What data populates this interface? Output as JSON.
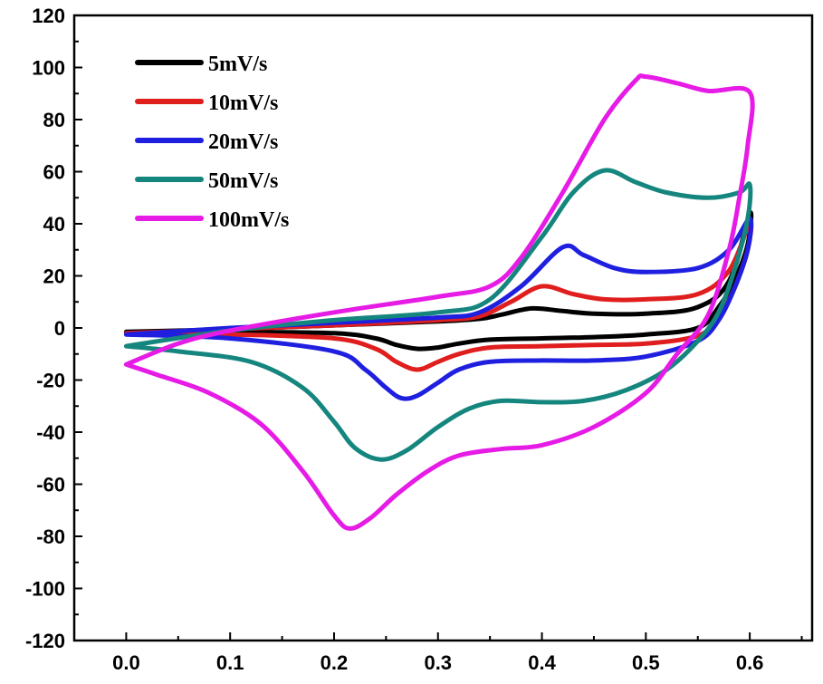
{
  "chart_data": {
    "type": "line",
    "title": "",
    "xlabel": "",
    "ylabel": "",
    "xlim": [
      -0.05,
      0.66
    ],
    "ylim": [
      -120,
      120
    ],
    "grid": false,
    "legend_position": "top-left",
    "x_ticks": [
      "0.0",
      "0.1",
      "0.2",
      "0.3",
      "0.4",
      "0.5",
      "0.6"
    ],
    "y_ticks": [
      "120",
      "100",
      "80",
      "60",
      "40",
      "20",
      "0",
      "-20",
      "-40",
      "-60",
      "-80",
      "-100",
      "-120"
    ],
    "series": [
      {
        "name": "5mV/s",
        "color": "#000000",
        "points": [
          [
            0.0,
            -1.5
          ],
          [
            0.1,
            -0.5
          ],
          [
            0.2,
            1
          ],
          [
            0.3,
            2.5
          ],
          [
            0.34,
            3.5
          ],
          [
            0.36,
            5
          ],
          [
            0.39,
            7.5
          ],
          [
            0.42,
            6.5
          ],
          [
            0.45,
            5.5
          ],
          [
            0.5,
            5.5
          ],
          [
            0.55,
            8
          ],
          [
            0.58,
            18
          ],
          [
            0.6,
            44
          ],
          [
            0.598,
            32
          ],
          [
            0.585,
            18
          ],
          [
            0.57,
            8
          ],
          [
            0.55,
            0
          ],
          [
            0.5,
            -2.5
          ],
          [
            0.45,
            -3.5
          ],
          [
            0.4,
            -4
          ],
          [
            0.35,
            -4.5
          ],
          [
            0.32,
            -6
          ],
          [
            0.3,
            -7.5
          ],
          [
            0.28,
            -8
          ],
          [
            0.26,
            -6.5
          ],
          [
            0.24,
            -4
          ],
          [
            0.2,
            -2
          ],
          [
            0.1,
            -1.5
          ],
          [
            0.0,
            -1.5
          ]
        ]
      },
      {
        "name": "10mV/s",
        "color": "#e01e1e",
        "points": [
          [
            0.0,
            -2
          ],
          [
            0.1,
            -0.5
          ],
          [
            0.2,
            1
          ],
          [
            0.3,
            3
          ],
          [
            0.34,
            4.5
          ],
          [
            0.37,
            10
          ],
          [
            0.4,
            16
          ],
          [
            0.43,
            13
          ],
          [
            0.46,
            11
          ],
          [
            0.5,
            11
          ],
          [
            0.55,
            13
          ],
          [
            0.58,
            22
          ],
          [
            0.6,
            40
          ],
          [
            0.598,
            30
          ],
          [
            0.585,
            15
          ],
          [
            0.57,
            4
          ],
          [
            0.55,
            -3
          ],
          [
            0.5,
            -6
          ],
          [
            0.45,
            -6.5
          ],
          [
            0.4,
            -7
          ],
          [
            0.35,
            -7.5
          ],
          [
            0.32,
            -10
          ],
          [
            0.3,
            -13
          ],
          [
            0.28,
            -16
          ],
          [
            0.26,
            -13
          ],
          [
            0.24,
            -8
          ],
          [
            0.2,
            -4
          ],
          [
            0.1,
            -2.5
          ],
          [
            0.0,
            -2
          ]
        ]
      },
      {
        "name": "20mV/s",
        "color": "#1f1fe0",
        "points": [
          [
            0.0,
            -2.5
          ],
          [
            0.1,
            0
          ],
          [
            0.2,
            2
          ],
          [
            0.3,
            4
          ],
          [
            0.34,
            6
          ],
          [
            0.38,
            16
          ],
          [
            0.42,
            31
          ],
          [
            0.44,
            28
          ],
          [
            0.47,
            23
          ],
          [
            0.5,
            21.5
          ],
          [
            0.55,
            23
          ],
          [
            0.58,
            30
          ],
          [
            0.6,
            42
          ],
          [
            0.598,
            30
          ],
          [
            0.585,
            15
          ],
          [
            0.57,
            3
          ],
          [
            0.55,
            -5
          ],
          [
            0.5,
            -11
          ],
          [
            0.45,
            -12.5
          ],
          [
            0.4,
            -12.5
          ],
          [
            0.35,
            -13
          ],
          [
            0.32,
            -16
          ],
          [
            0.3,
            -21
          ],
          [
            0.28,
            -26
          ],
          [
            0.265,
            -27
          ],
          [
            0.25,
            -23
          ],
          [
            0.23,
            -16
          ],
          [
            0.2,
            -9
          ],
          [
            0.1,
            -4
          ],
          [
            0.0,
            -2.5
          ]
        ]
      },
      {
        "name": "50mV/s",
        "color": "#15867e",
        "points": [
          [
            0.0,
            -7
          ],
          [
            0.1,
            -1
          ],
          [
            0.2,
            3
          ],
          [
            0.3,
            6
          ],
          [
            0.35,
            11
          ],
          [
            0.4,
            35
          ],
          [
            0.43,
            52
          ],
          [
            0.46,
            60.5
          ],
          [
            0.49,
            56
          ],
          [
            0.52,
            52
          ],
          [
            0.56,
            50
          ],
          [
            0.59,
            52
          ],
          [
            0.6,
            55
          ],
          [
            0.598,
            42
          ],
          [
            0.585,
            22
          ],
          [
            0.57,
            6
          ],
          [
            0.55,
            -5
          ],
          [
            0.52,
            -16
          ],
          [
            0.48,
            -24
          ],
          [
            0.44,
            -28
          ],
          [
            0.4,
            -28.5
          ],
          [
            0.36,
            -28
          ],
          [
            0.33,
            -31
          ],
          [
            0.3,
            -38
          ],
          [
            0.27,
            -47
          ],
          [
            0.245,
            -50.5
          ],
          [
            0.22,
            -46
          ],
          [
            0.2,
            -36
          ],
          [
            0.17,
            -23
          ],
          [
            0.12,
            -13
          ],
          [
            0.05,
            -9
          ],
          [
            0.0,
            -7
          ]
        ]
      },
      {
        "name": "100mV/s",
        "color": "#e61be6",
        "points": [
          [
            0.0,
            -14
          ],
          [
            0.05,
            -6
          ],
          [
            0.1,
            -1
          ],
          [
            0.2,
            6
          ],
          [
            0.3,
            12
          ],
          [
            0.35,
            16
          ],
          [
            0.38,
            27
          ],
          [
            0.42,
            52
          ],
          [
            0.46,
            80
          ],
          [
            0.49,
            95
          ],
          [
            0.5,
            96.5
          ],
          [
            0.53,
            94
          ],
          [
            0.56,
            91
          ],
          [
            0.6,
            90.5
          ],
          [
            0.598,
            70
          ],
          [
            0.59,
            50
          ],
          [
            0.58,
            30
          ],
          [
            0.56,
            5
          ],
          [
            0.53,
            -10
          ],
          [
            0.5,
            -25
          ],
          [
            0.45,
            -38
          ],
          [
            0.4,
            -45
          ],
          [
            0.36,
            -46.5
          ],
          [
            0.32,
            -49
          ],
          [
            0.29,
            -55
          ],
          [
            0.26,
            -64
          ],
          [
            0.235,
            -73
          ],
          [
            0.215,
            -77
          ],
          [
            0.2,
            -72
          ],
          [
            0.17,
            -55
          ],
          [
            0.13,
            -37
          ],
          [
            0.08,
            -25
          ],
          [
            0.03,
            -18
          ],
          [
            0.0,
            -14
          ]
        ]
      }
    ]
  }
}
